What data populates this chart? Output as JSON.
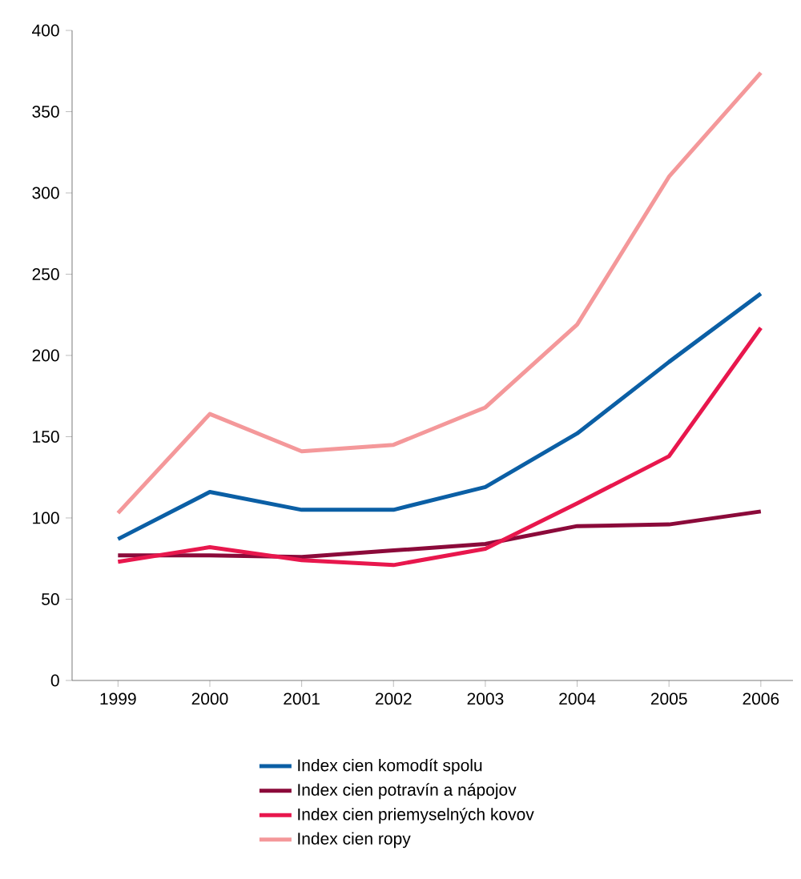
{
  "chart_data": {
    "type": "line",
    "categories": [
      "1999",
      "2000",
      "2001",
      "2002",
      "2003",
      "2004",
      "2005",
      "2006"
    ],
    "series": [
      {
        "name": "Index cien komodít spolu",
        "color": "#0b5fa5",
        "values": [
          87,
          116,
          105,
          105,
          119,
          152,
          196,
          238
        ]
      },
      {
        "name": "Index cien potravín a nápojov",
        "color": "#8b0a3a",
        "values": [
          77,
          77,
          76,
          80,
          84,
          95,
          96,
          104
        ]
      },
      {
        "name": "Index cien priemyselných kovov",
        "color": "#e8174d",
        "values": [
          73,
          82,
          74,
          71,
          81,
          109,
          138,
          217
        ]
      },
      {
        "name": "Index cien ropy",
        "color": "#f4989a",
        "values": [
          103,
          164,
          141,
          145,
          168,
          219,
          310,
          374
        ]
      }
    ],
    "ylim": [
      0,
      400
    ],
    "yticks": [
      0,
      50,
      100,
      150,
      200,
      250,
      300,
      350,
      400
    ],
    "grid": false,
    "legend": "bottom",
    "marker": "none",
    "line_style": "solid"
  }
}
